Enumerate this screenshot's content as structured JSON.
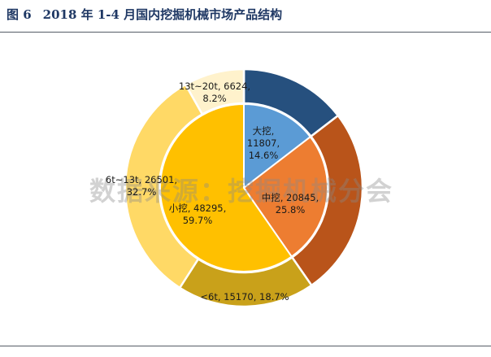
{
  "figure": {
    "number": "图 6",
    "title": "2018 年 1-4 月国内挖掘机械市场产品结构"
  },
  "watermark": "数据来源：挖掘机械分会",
  "chart_data": {
    "type": "pie",
    "subtype": "nested-donut",
    "legend": "none",
    "inner_ring": [
      {
        "name": "大挖",
        "value": 11807,
        "percent": "14.6%",
        "color": "#5b9bd5"
      },
      {
        "name": "中挖",
        "value": 20845,
        "percent": "25.8%",
        "color": "#ed7d31"
      },
      {
        "name": "小挖",
        "value": 48295,
        "percent": "59.7%",
        "color": "#ffc000"
      }
    ],
    "outer_ring": [
      {
        "name": "",
        "value": 11807,
        "percent": "",
        "color": "#26507e"
      },
      {
        "name": "",
        "value": 20845,
        "percent": "",
        "color": "#b9541a"
      },
      {
        "name": "<6t",
        "value": 15170,
        "percent": "18.7%",
        "color": "#c9a11a"
      },
      {
        "name": "6t~13t",
        "value": 26501,
        "percent": "32.7%",
        "color": "#ffd966"
      },
      {
        "name": "13t~20t",
        "value": 6624,
        "percent": "8.2%",
        "color": "#fff2cc"
      }
    ]
  }
}
